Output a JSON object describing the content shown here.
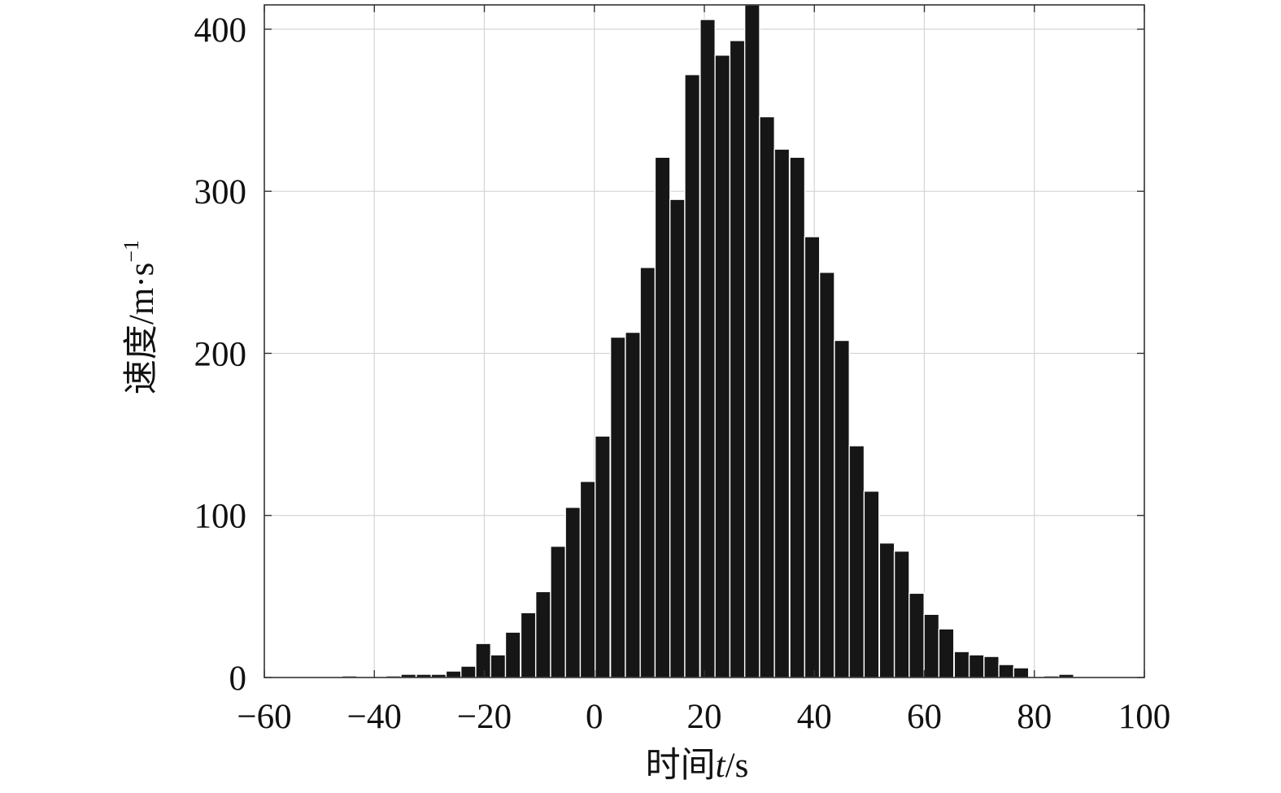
{
  "chart_data": {
    "type": "bar",
    "title": "",
    "xlabel": {
      "prefix": "时间",
      "var": "t",
      "unit": "/s"
    },
    "ylabel": {
      "text": "速度/m·s",
      "sup": "−1"
    },
    "xlim": [
      -60,
      100
    ],
    "ylim": [
      0,
      415
    ],
    "grid": true,
    "x_ticks": [
      -60,
      -40,
      -20,
      0,
      20,
      40,
      60,
      80,
      100
    ],
    "x_tick_labels": [
      "−60",
      "−40",
      "−20",
      "0",
      "20",
      "40",
      "60",
      "80",
      "100"
    ],
    "y_ticks": [
      0,
      100,
      200,
      300,
      400
    ],
    "y_tick_labels": [
      "0",
      "100",
      "200",
      "300",
      "400"
    ],
    "bin_width": 2.72,
    "bins": [
      {
        "x": -44.5,
        "value": 1
      },
      {
        "x": -36.5,
        "value": 1
      },
      {
        "x": -33.8,
        "value": 2
      },
      {
        "x": -31.0,
        "value": 2
      },
      {
        "x": -28.3,
        "value": 2
      },
      {
        "x": -25.6,
        "value": 4
      },
      {
        "x": -22.9,
        "value": 7
      },
      {
        "x": -20.2,
        "value": 21
      },
      {
        "x": -17.5,
        "value": 14
      },
      {
        "x": -14.8,
        "value": 28
      },
      {
        "x": -12.0,
        "value": 40
      },
      {
        "x": -9.3,
        "value": 53
      },
      {
        "x": -6.6,
        "value": 81
      },
      {
        "x": -3.9,
        "value": 105
      },
      {
        "x": -1.2,
        "value": 121
      },
      {
        "x": 1.5,
        "value": 149
      },
      {
        "x": 4.3,
        "value": 210
      },
      {
        "x": 7.0,
        "value": 213
      },
      {
        "x": 9.7,
        "value": 253
      },
      {
        "x": 12.4,
        "value": 321
      },
      {
        "x": 15.1,
        "value": 295
      },
      {
        "x": 17.8,
        "value": 372
      },
      {
        "x": 20.6,
        "value": 406
      },
      {
        "x": 23.3,
        "value": 384
      },
      {
        "x": 26.0,
        "value": 393
      },
      {
        "x": 28.7,
        "value": 415
      },
      {
        "x": 31.4,
        "value": 346
      },
      {
        "x": 34.1,
        "value": 326
      },
      {
        "x": 36.9,
        "value": 321
      },
      {
        "x": 39.6,
        "value": 272
      },
      {
        "x": 42.3,
        "value": 250
      },
      {
        "x": 45.0,
        "value": 208
      },
      {
        "x": 47.7,
        "value": 143
      },
      {
        "x": 50.4,
        "value": 115
      },
      {
        "x": 53.2,
        "value": 83
      },
      {
        "x": 55.9,
        "value": 78
      },
      {
        "x": 58.6,
        "value": 52
      },
      {
        "x": 61.3,
        "value": 39
      },
      {
        "x": 64.0,
        "value": 30
      },
      {
        "x": 66.8,
        "value": 16
      },
      {
        "x": 69.5,
        "value": 14
      },
      {
        "x": 72.2,
        "value": 13
      },
      {
        "x": 74.9,
        "value": 8
      },
      {
        "x": 77.6,
        "value": 6
      },
      {
        "x": 83.1,
        "value": 1
      },
      {
        "x": 85.8,
        "value": 2
      }
    ]
  }
}
